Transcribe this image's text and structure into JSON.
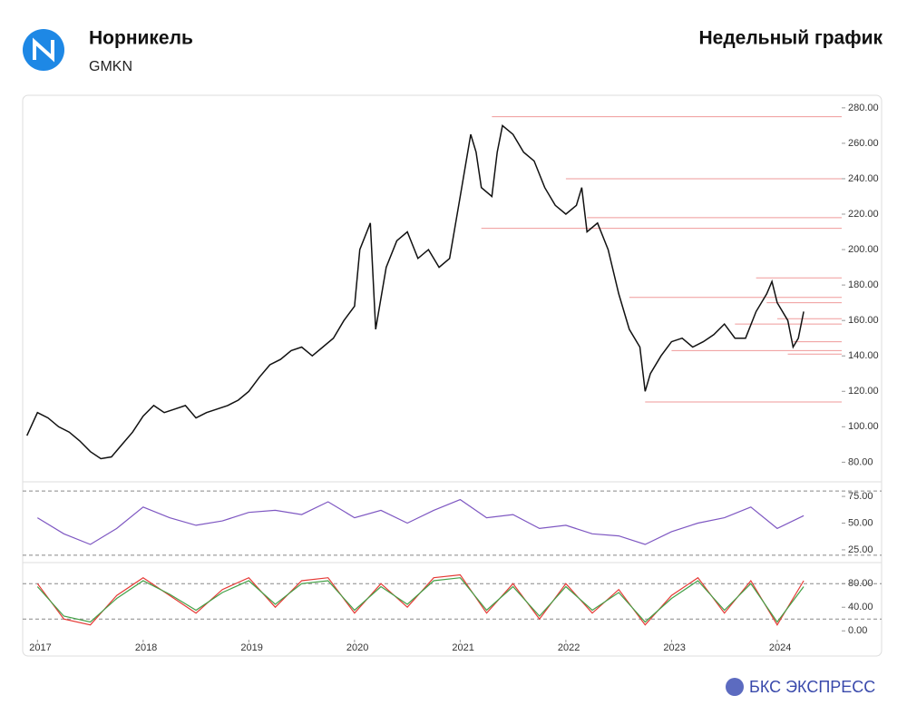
{
  "header": {
    "title": "Норникель",
    "ticker": "GMKN",
    "subtitle": "Недельный график",
    "brand": "БКС ЭКСПРЕСС"
  },
  "chart_data": [
    {
      "type": "line",
      "xlim": [
        2016.86,
        2024.61
      ],
      "ylim": [
        72,
        283
      ],
      "yticks": [
        {
          "value": 80,
          "label": "80.00"
        },
        {
          "value": 100,
          "label": "100.00"
        },
        {
          "value": 120,
          "label": "120.00"
        },
        {
          "value": 140,
          "label": "140.00"
        },
        {
          "value": 160,
          "label": "160.00"
        },
        {
          "value": 180,
          "label": "180.00"
        },
        {
          "value": 200,
          "label": "200.00"
        },
        {
          "value": 220,
          "label": "220.00"
        },
        {
          "value": 240,
          "label": "240.00"
        },
        {
          "value": 260,
          "label": "260.00"
        },
        {
          "value": 280,
          "label": "280.00"
        }
      ],
      "x": [
        2016.9,
        2017.0,
        2017.1,
        2017.2,
        2017.3,
        2017.4,
        2017.5,
        2017.6,
        2017.7,
        2017.8,
        2017.9,
        2018.0,
        2018.1,
        2018.2,
        2018.3,
        2018.4,
        2018.5,
        2018.6,
        2018.7,
        2018.8,
        2018.9,
        2019.0,
        2019.1,
        2019.2,
        2019.3,
        2019.4,
        2019.5,
        2019.6,
        2019.7,
        2019.8,
        2019.9,
        2020.0,
        2020.05,
        2020.15,
        2020.2,
        2020.3,
        2020.4,
        2020.5,
        2020.6,
        2020.7,
        2020.8,
        2020.9,
        2021.0,
        2021.1,
        2021.15,
        2021.2,
        2021.3,
        2021.35,
        2021.4,
        2021.5,
        2021.6,
        2021.7,
        2021.8,
        2021.9,
        2022.0,
        2022.1,
        2022.15,
        2022.2,
        2022.3,
        2022.4,
        2022.5,
        2022.6,
        2022.7,
        2022.75,
        2022.8,
        2022.9,
        2023.0,
        2023.1,
        2023.2,
        2023.3,
        2023.4,
        2023.5,
        2023.6,
        2023.7,
        2023.8,
        2023.9,
        2023.95,
        2024.0,
        2024.1,
        2024.15,
        2024.2,
        2024.25
      ],
      "series": [
        {
          "color": "#111111",
          "values": [
            95,
            108,
            105,
            100,
            97,
            92,
            86,
            82,
            83,
            90,
            97,
            106,
            112,
            108,
            110,
            112,
            105,
            108,
            110,
            112,
            115,
            120,
            128,
            135,
            138,
            143,
            145,
            140,
            145,
            150,
            160,
            168,
            200,
            215,
            155,
            190,
            205,
            210,
            195,
            200,
            190,
            195,
            230,
            265,
            255,
            235,
            230,
            255,
            270,
            265,
            255,
            250,
            235,
            225,
            220,
            225,
            235,
            210,
            215,
            200,
            175,
            155,
            145,
            120,
            130,
            140,
            148,
            150,
            145,
            148,
            152,
            158,
            150,
            150,
            165,
            175,
            182,
            170,
            160,
            145,
            150,
            165
          ]
        }
      ],
      "levels": [
        {
          "value": 275,
          "from": 2021.3
        },
        {
          "value": 240,
          "from": 2022.0
        },
        {
          "value": 218,
          "from": 2022.2
        },
        {
          "value": 212,
          "from": 2021.2
        },
        {
          "value": 184,
          "from": 2023.8
        },
        {
          "value": 173,
          "from": 2022.6
        },
        {
          "value": 170,
          "from": 2023.9
        },
        {
          "value": 161,
          "from": 2024.0
        },
        {
          "value": 158,
          "from": 2023.6
        },
        {
          "value": 148,
          "from": 2024.15
        },
        {
          "value": 143,
          "from": 2023.0
        },
        {
          "value": 141,
          "from": 2024.1
        },
        {
          "value": 114,
          "from": 2022.75
        }
      ]
    },
    {
      "type": "line",
      "xlim": [
        2016.86,
        2024.61
      ],
      "ylim": [
        19,
        81
      ],
      "yticks": [
        {
          "value": 25,
          "label": "25.00"
        },
        {
          "value": 50,
          "label": "50.00"
        },
        {
          "value": 75,
          "label": "75.00"
        }
      ],
      "hlines": [
        80,
        20
      ],
      "x": [
        2017.0,
        2017.25,
        2017.5,
        2017.75,
        2018.0,
        2018.25,
        2018.5,
        2018.75,
        2019.0,
        2019.25,
        2019.5,
        2019.75,
        2020.0,
        2020.25,
        2020.5,
        2020.75,
        2021.0,
        2021.25,
        2021.5,
        2021.75,
        2022.0,
        2022.25,
        2022.5,
        2022.75,
        2023.0,
        2023.25,
        2023.5,
        2023.75,
        2024.0,
        2024.25
      ],
      "series": [
        {
          "color": "#7e57c2",
          "values": [
            55,
            40,
            30,
            45,
            65,
            55,
            48,
            52,
            60,
            62,
            58,
            70,
            55,
            62,
            50,
            62,
            72,
            55,
            58,
            45,
            48,
            40,
            38,
            30,
            42,
            50,
            55,
            65,
            45,
            57
          ]
        }
      ]
    },
    {
      "type": "line",
      "xlim": [
        2016.86,
        2024.61
      ],
      "ylim": [
        -15,
        108
      ],
      "yticks": [
        {
          "value": 0,
          "label": "0.00"
        },
        {
          "value": 40,
          "label": "40.00"
        },
        {
          "value": 80,
          "label": "80.00"
        }
      ],
      "hlines": [
        80,
        20
      ],
      "xticks": [
        2017,
        2018,
        2019,
        2020,
        2021,
        2022,
        2023,
        2024
      ],
      "x": [
        2017.0,
        2017.25,
        2017.5,
        2017.75,
        2018.0,
        2018.25,
        2018.5,
        2018.75,
        2019.0,
        2019.25,
        2019.5,
        2019.75,
        2020.0,
        2020.25,
        2020.5,
        2020.75,
        2021.0,
        2021.25,
        2021.5,
        2021.75,
        2022.0,
        2022.25,
        2022.5,
        2022.75,
        2023.0,
        2023.25,
        2023.5,
        2023.75,
        2024.0,
        2024.25
      ],
      "series": [
        {
          "color": "#e53935",
          "values": [
            80,
            20,
            10,
            60,
            90,
            60,
            30,
            70,
            90,
            40,
            85,
            90,
            30,
            80,
            40,
            90,
            95,
            30,
            80,
            20,
            80,
            30,
            70,
            10,
            60,
            90,
            30,
            85,
            10,
            85
          ]
        },
        {
          "color": "#43a047",
          "values": [
            75,
            25,
            15,
            55,
            85,
            62,
            35,
            65,
            85,
            45,
            80,
            85,
            35,
            75,
            45,
            85,
            90,
            35,
            75,
            25,
            75,
            35,
            65,
            15,
            55,
            85,
            35,
            80,
            15,
            75
          ]
        }
      ]
    }
  ]
}
